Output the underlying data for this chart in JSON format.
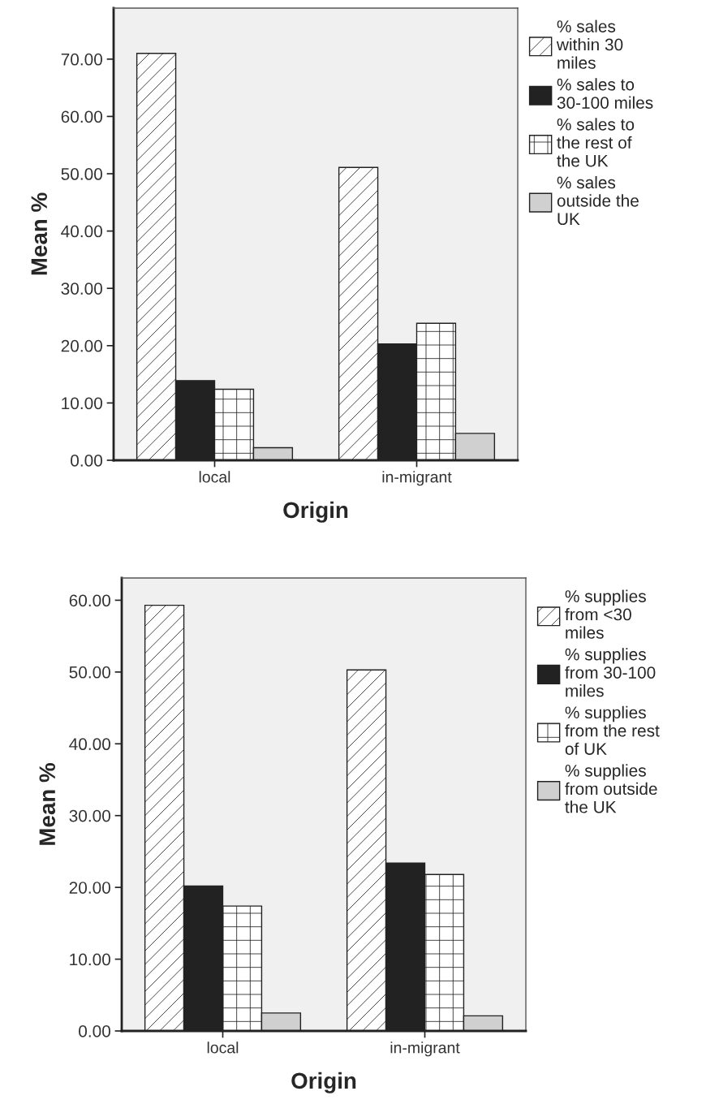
{
  "chart_data": [
    {
      "type": "bar",
      "xlabel": "Origin",
      "ylabel": "Mean %",
      "categories": [
        "local",
        "in-migrant"
      ],
      "series": [
        {
          "name": "% sales within 30 miles",
          "color": "#ffffff",
          "values": [
            71.0,
            51.1
          ]
        },
        {
          "name": "% sales to 30-100 miles",
          "color": "#222222",
          "values": [
            13.9,
            20.3
          ]
        },
        {
          "name": "% sales to the rest of the UK",
          "color": "#ffffff",
          "values": [
            12.4,
            23.9
          ]
        },
        {
          "name": "% sales outside the UK",
          "color": "#d0d0d0",
          "values": [
            2.2,
            4.7
          ]
        }
      ],
      "ylim": [
        0,
        78.9
      ],
      "yticks": [
        {
          "value": 0,
          "label": "0.00"
        },
        {
          "value": 10,
          "label": "10.00"
        },
        {
          "value": 20,
          "label": "20.00"
        },
        {
          "value": 30,
          "label": "30.00"
        },
        {
          "value": 40,
          "label": "40.00"
        },
        {
          "value": 50,
          "label": "50.00"
        },
        {
          "value": 60,
          "label": "60.00"
        },
        {
          "value": 70,
          "label": "70.00"
        }
      ],
      "grid": false,
      "legend": "right"
    },
    {
      "type": "bar",
      "xlabel": "Origin",
      "ylabel": "Mean %",
      "categories": [
        "local",
        "in-migrant"
      ],
      "series": [
        {
          "name": "% supplies from <30 miles",
          "color": "#ffffff",
          "values": [
            59.3,
            50.3
          ]
        },
        {
          "name": "% supplies from 30-100 miles",
          "color": "#222222",
          "values": [
            20.2,
            23.4
          ]
        },
        {
          "name": "% supplies from the rest of UK",
          "color": "#ffffff",
          "values": [
            17.4,
            21.8
          ]
        },
        {
          "name": "% supplies from outside the UK",
          "color": "#d0d0d0",
          "values": [
            2.5,
            2.1
          ]
        }
      ],
      "ylim": [
        0,
        63.1
      ],
      "yticks": [
        {
          "value": 0,
          "label": "0.00"
        },
        {
          "value": 10,
          "label": "10.00"
        },
        {
          "value": 20,
          "label": "20.00"
        },
        {
          "value": 30,
          "label": "30.00"
        },
        {
          "value": 40,
          "label": "40.00"
        },
        {
          "value": 50,
          "label": "50.00"
        },
        {
          "value": 60,
          "label": "60.00"
        }
      ],
      "grid": false,
      "legend": "right"
    }
  ]
}
